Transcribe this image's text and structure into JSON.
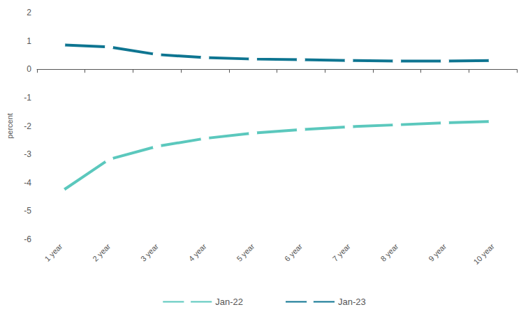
{
  "chart_data": {
    "type": "line",
    "y_label": "percent",
    "categories": [
      "1 year",
      "2 year",
      "3 year",
      "4 year",
      "5 year",
      "6 year",
      "7 year",
      "8 year",
      "9 year",
      "10 year"
    ],
    "series": [
      {
        "name": "Jan-22",
        "color": "#5bc8bd",
        "values": [
          -4.32,
          -3.18,
          -2.72,
          -2.44,
          -2.25,
          -2.13,
          -2.03,
          -1.96,
          -1.89,
          -1.84
        ]
      },
      {
        "name": "Jan-23",
        "color": "#0e7591",
        "values": [
          0.86,
          0.79,
          0.52,
          0.41,
          0.36,
          0.34,
          0.31,
          0.29,
          0.29,
          0.31
        ]
      }
    ],
    "ylim": [
      -6,
      2
    ],
    "yticks": [
      -6,
      -5,
      -4,
      -3,
      -2,
      -1,
      0,
      1,
      2
    ],
    "grid": false,
    "legend": "bottom",
    "marker": "circle"
  }
}
